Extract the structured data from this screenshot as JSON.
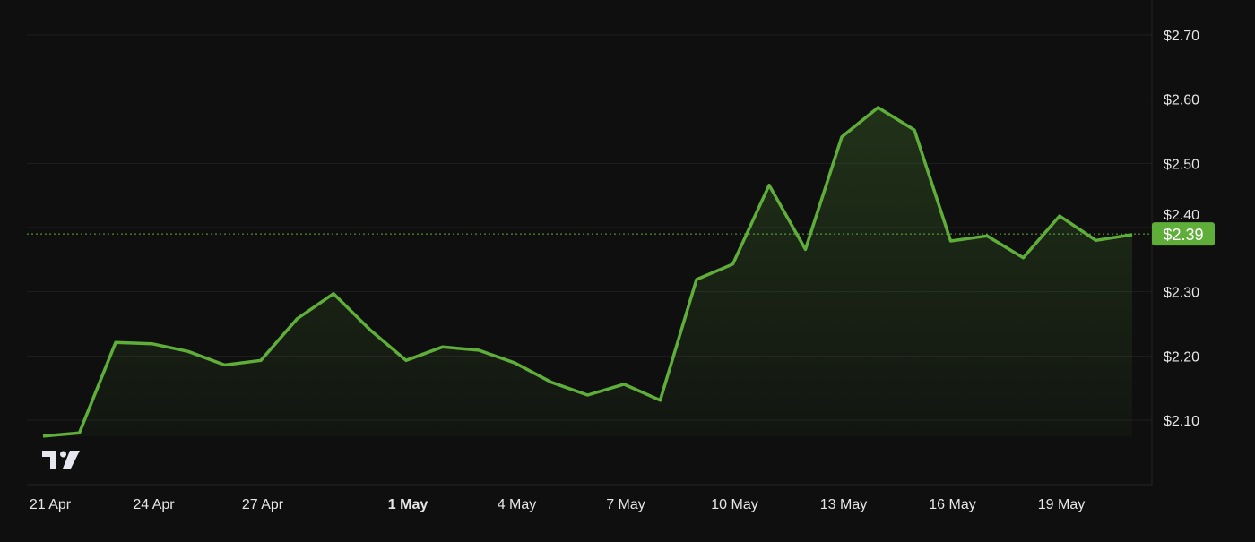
{
  "chart_data": {
    "type": "area",
    "title": "",
    "xlabel": "",
    "ylabel": "",
    "x": [
      "21 Apr",
      "22 Apr",
      "23 Apr",
      "24 Apr",
      "25 Apr",
      "26 Apr",
      "27 Apr",
      "28 Apr",
      "29 Apr",
      "30 Apr",
      "1 May",
      "2 May",
      "3 May",
      "4 May",
      "5 May",
      "6 May",
      "7 May",
      "8 May",
      "9 May",
      "10 May",
      "11 May",
      "12 May",
      "13 May",
      "14 May",
      "15 May",
      "16 May",
      "17 May",
      "18 May",
      "19 May",
      "20 May",
      "21 May"
    ],
    "values": [
      2.075,
      2.08,
      2.221,
      2.219,
      2.207,
      2.186,
      2.193,
      2.258,
      2.297,
      2.241,
      2.193,
      2.214,
      2.209,
      2.189,
      2.159,
      2.139,
      2.156,
      2.131,
      2.319,
      2.343,
      2.466,
      2.366,
      2.541,
      2.587,
      2.552,
      2.379,
      2.387,
      2.353,
      2.418,
      2.38,
      2.389
    ],
    "ylim": [
      2.0,
      2.72
    ],
    "y_ticks": [
      "$2.10",
      "$2.20",
      "$2.30",
      "$2.40",
      "$2.50",
      "$2.60",
      "$2.70"
    ],
    "y_tick_values": [
      2.1,
      2.2,
      2.3,
      2.4,
      2.5,
      2.6,
      2.7
    ],
    "x_ticks": [
      {
        "label": "21 Apr",
        "index": 0,
        "bold": false
      },
      {
        "label": "24 Apr",
        "index": 3,
        "bold": false
      },
      {
        "label": "27 Apr",
        "index": 6,
        "bold": false
      },
      {
        "label": "1 May",
        "index": 10,
        "bold": true
      },
      {
        "label": "4 May",
        "index": 13,
        "bold": false
      },
      {
        "label": "7 May",
        "index": 16,
        "bold": false
      },
      {
        "label": "10 May",
        "index": 19,
        "bold": false
      },
      {
        "label": "13 May",
        "index": 22,
        "bold": false
      },
      {
        "label": "16 May",
        "index": 25,
        "bold": false
      },
      {
        "label": "19 May",
        "index": 28,
        "bold": false
      }
    ],
    "last_price_label": "$2.39",
    "last_price": 2.39,
    "grid": true,
    "legend": "none",
    "colors": {
      "line": "#5fae3a",
      "badge": "#5fae3a",
      "background": "#0f0f0f",
      "grid": "#1f1f1f"
    }
  },
  "logo": "TV"
}
